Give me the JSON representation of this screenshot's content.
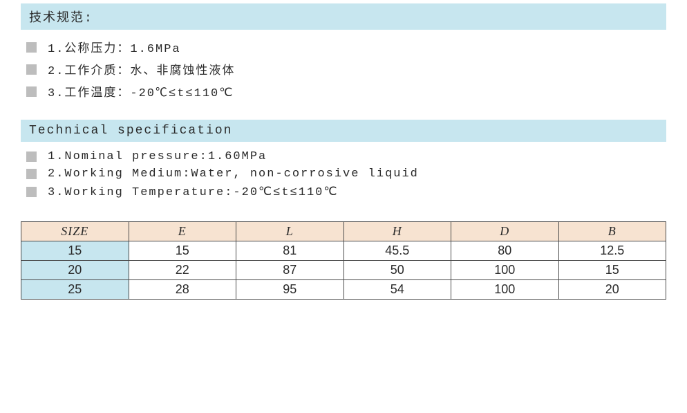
{
  "section_cn": {
    "title": "技术规范:",
    "items": [
      "1.公称压力：1.6MPa",
      "2.工作介质：水、非腐蚀性液体",
      "3.工作温度：-20℃≤t≤110℃"
    ]
  },
  "section_en": {
    "title": "Technical specification",
    "items": [
      "1.Nominal pressure:1.60MPa",
      "2.Working Medium:Water, non-corrosive liquid",
      "3.Working Temperature:-20℃≤t≤110℃"
    ]
  },
  "table": {
    "columns": [
      "SIZE",
      "E",
      "L",
      "H",
      "D",
      "B"
    ],
    "header_bg": "#f7e3d1",
    "size_col_bg": "#c7e6ef",
    "border_color": "#4a4a4a",
    "rows": [
      [
        "15",
        "15",
        "81",
        "45.5",
        "80",
        "12.5"
      ],
      [
        "20",
        "22",
        "87",
        "50",
        "100",
        "15"
      ],
      [
        "25",
        "28",
        "95",
        "54",
        "100",
        "20"
      ]
    ]
  },
  "colors": {
    "header_band": "#c7e6ef",
    "bullet": "#bdbdbd",
    "text": "#2a2a2a",
    "bg": "#ffffff"
  }
}
